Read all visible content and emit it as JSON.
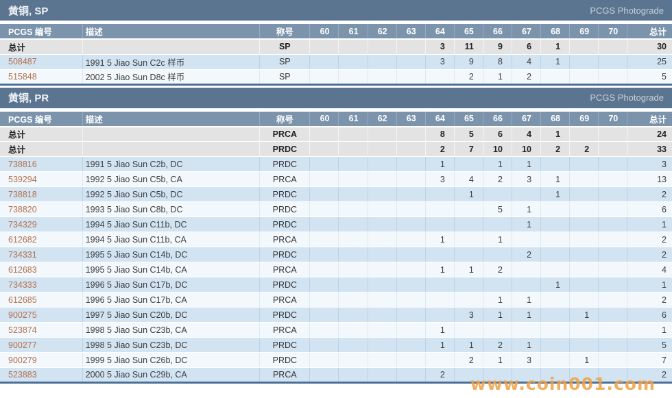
{
  "watermark": "www.coin001.com",
  "colors": {
    "section_bar": "#5b7590",
    "table_header": "#7b94ac",
    "table_border": "#4b6f96",
    "total_row": "#e3e3e3",
    "row_blue": "#d2e3f2",
    "row_white": "#f3f8fc",
    "link": "#b4714e",
    "watermark": "#f0a143"
  },
  "columns": [
    "PCGS 编号",
    "描述",
    "称号",
    "60",
    "61",
    "62",
    "63",
    "64",
    "65",
    "66",
    "67",
    "68",
    "69",
    "70",
    "总计"
  ],
  "sections": [
    {
      "title": "黄铜, SP",
      "brand_link": "PCGS Photograde",
      "rows": [
        {
          "type": "total",
          "num": "总计",
          "desc": "",
          "designation": "SP",
          "grades": [
            "",
            "",
            "",
            "",
            "3",
            "11",
            "9",
            "6",
            "1",
            "",
            ""
          ],
          "total": "30"
        },
        {
          "type": "data",
          "num": "508487",
          "desc": "1991 5 Jiao Sun C2c 样币",
          "designation": "SP",
          "grades": [
            "",
            "",
            "",
            "",
            "3",
            "9",
            "8",
            "4",
            "1",
            "",
            ""
          ],
          "total": "25"
        },
        {
          "type": "data",
          "num": "515848",
          "desc": "2002 5 Jiao Sun D8c 样币",
          "designation": "SP",
          "grades": [
            "",
            "",
            "",
            "",
            "",
            "2",
            "1",
            "2",
            "",
            "",
            ""
          ],
          "total": "5"
        }
      ]
    },
    {
      "title": "黄铜, PR",
      "brand_link": "PCGS Photograde",
      "rows": [
        {
          "type": "total",
          "num": "总计",
          "desc": "",
          "designation": "PRCA",
          "grades": [
            "",
            "",
            "",
            "",
            "8",
            "5",
            "6",
            "4",
            "1",
            "",
            ""
          ],
          "total": "24"
        },
        {
          "type": "total",
          "num": "总计",
          "desc": "",
          "designation": "PRDC",
          "grades": [
            "",
            "",
            "",
            "",
            "2",
            "7",
            "10",
            "10",
            "2",
            "2",
            ""
          ],
          "total": "33"
        },
        {
          "type": "data",
          "num": "738816",
          "desc": "1991 5 Jiao Sun C2b, DC",
          "designation": "PRDC",
          "grades": [
            "",
            "",
            "",
            "",
            "1",
            "",
            "1",
            "1",
            "",
            "",
            ""
          ],
          "total": "3"
        },
        {
          "type": "data",
          "num": "539294",
          "desc": "1992 5 Jiao Sun C5b, CA",
          "designation": "PRCA",
          "grades": [
            "",
            "",
            "",
            "",
            "3",
            "4",
            "2",
            "3",
            "1",
            "",
            ""
          ],
          "total": "13"
        },
        {
          "type": "data",
          "num": "738818",
          "desc": "1992 5 Jiao Sun C5b, DC",
          "designation": "PRDC",
          "grades": [
            "",
            "",
            "",
            "",
            "",
            "1",
            "",
            "",
            "1",
            "",
            ""
          ],
          "total": "2"
        },
        {
          "type": "data",
          "num": "738820",
          "desc": "1993 5 Jiao Sun C8b, DC",
          "designation": "PRDC",
          "grades": [
            "",
            "",
            "",
            "",
            "",
            "",
            "5",
            "1",
            "",
            "",
            ""
          ],
          "total": "6"
        },
        {
          "type": "data",
          "num": "734329",
          "desc": "1994 5 Jiao Sun C11b, DC",
          "designation": "PRDC",
          "grades": [
            "",
            "",
            "",
            "",
            "",
            "",
            "",
            "1",
            "",
            "",
            ""
          ],
          "total": "1"
        },
        {
          "type": "data",
          "num": "612682",
          "desc": "1994 5 Jiao Sun C11b, CA",
          "designation": "PRCA",
          "grades": [
            "",
            "",
            "",
            "",
            "1",
            "",
            "1",
            "",
            "",
            "",
            ""
          ],
          "total": "2"
        },
        {
          "type": "data",
          "num": "734331",
          "desc": "1995 5 Jiao Sun C14b, DC",
          "designation": "PRDC",
          "grades": [
            "",
            "",
            "",
            "",
            "",
            "",
            "",
            "2",
            "",
            "",
            ""
          ],
          "total": "2"
        },
        {
          "type": "data",
          "num": "612683",
          "desc": "1995 5 Jiao Sun C14b, CA",
          "designation": "PRCA",
          "grades": [
            "",
            "",
            "",
            "",
            "1",
            "1",
            "2",
            "",
            "",
            "",
            ""
          ],
          "total": "4"
        },
        {
          "type": "data",
          "num": "734333",
          "desc": "1996 5 Jiao Sun C17b, DC",
          "designation": "PRDC",
          "grades": [
            "",
            "",
            "",
            "",
            "",
            "",
            "",
            "",
            "1",
            "",
            ""
          ],
          "total": "1"
        },
        {
          "type": "data",
          "num": "612685",
          "desc": "1996 5 Jiao Sun C17b, CA",
          "designation": "PRCA",
          "grades": [
            "",
            "",
            "",
            "",
            "",
            "",
            "1",
            "1",
            "",
            "",
            ""
          ],
          "total": "2"
        },
        {
          "type": "data",
          "num": "900275",
          "desc": "1997 5 Jiao Sun C20b, DC",
          "designation": "PRDC",
          "grades": [
            "",
            "",
            "",
            "",
            "",
            "3",
            "1",
            "1",
            "",
            "1",
            ""
          ],
          "total": "6"
        },
        {
          "type": "data",
          "num": "523874",
          "desc": "1998 5 Jiao Sun C23b, CA",
          "designation": "PRCA",
          "grades": [
            "",
            "",
            "",
            "",
            "1",
            "",
            "",
            "",
            "",
            "",
            ""
          ],
          "total": "1"
        },
        {
          "type": "data",
          "num": "900277",
          "desc": "1998 5 Jiao Sun C23b, DC",
          "designation": "PRDC",
          "grades": [
            "",
            "",
            "",
            "",
            "1",
            "1",
            "2",
            "1",
            "",
            "",
            ""
          ],
          "total": "5"
        },
        {
          "type": "data",
          "num": "900279",
          "desc": "1999 5 Jiao Sun C26b, DC",
          "designation": "PRDC",
          "grades": [
            "",
            "",
            "",
            "",
            "",
            "2",
            "1",
            "3",
            "",
            "1",
            ""
          ],
          "total": "7"
        },
        {
          "type": "data",
          "num": "523883",
          "desc": "2000 5 Jiao Sun C29b, CA",
          "designation": "PRCA",
          "grades": [
            "",
            "",
            "",
            "",
            "2",
            "",
            "",
            "",
            "",
            "",
            ""
          ],
          "total": "2"
        }
      ]
    }
  ]
}
